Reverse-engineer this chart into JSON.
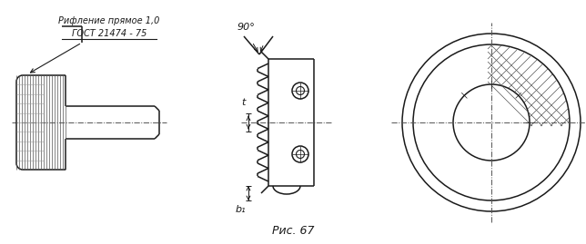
{
  "title": "Рис. 67",
  "ann1": "Рифление прямое 1,0",
  "ann2": "ГОСТ 21474 - 75",
  "label_90": "90°",
  "label_t": "t",
  "label_b1": "b₁",
  "bg": "#ffffff",
  "lc": "#1a1a1a",
  "fig_w": 6.44,
  "fig_h": 2.69,
  "dpi": 100
}
